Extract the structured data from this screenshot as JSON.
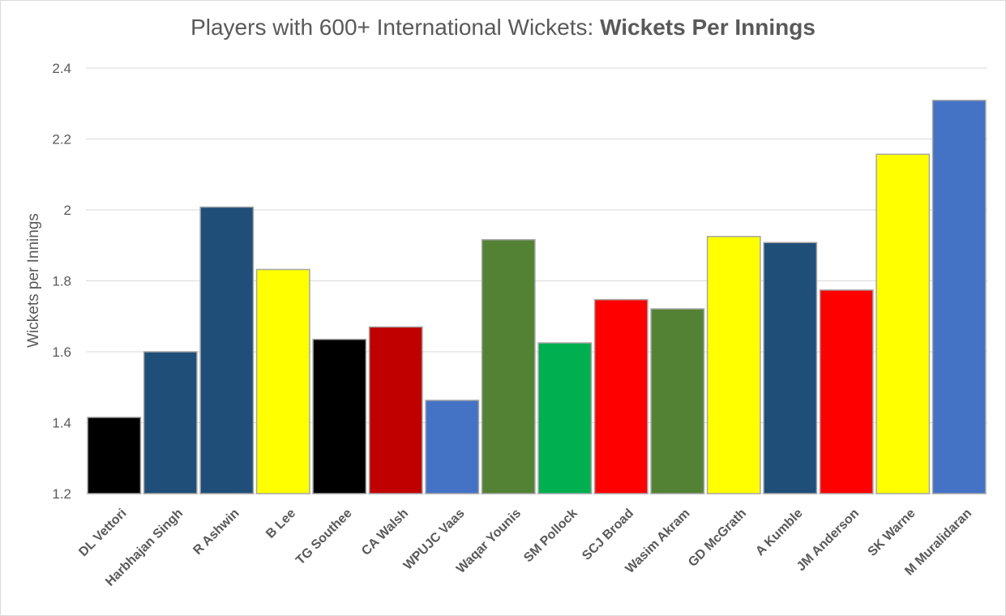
{
  "chart_data": {
    "type": "bar",
    "title": "Players with 600+ International Wickets:",
    "title_bold": "Wickets Per Innings",
    "xlabel": "",
    "ylabel": "Wickets per Innings",
    "ylim": [
      1.2,
      2.4
    ],
    "yticks": [
      1.2,
      1.4,
      1.6,
      1.8,
      2,
      2.2,
      2.4
    ],
    "grid": true,
    "categories": [
      "DL Vettori",
      "Harbhajan Singh",
      "R Ashwin",
      "B Lee",
      "TG Southee",
      "CA Walsh",
      "WPUJC Vaas",
      "Waqar Younis",
      "SM Pollock",
      "SCJ Broad",
      "Wasim Akram",
      "GD McGrath",
      "A Kumble",
      "JM Anderson",
      "SK Warne",
      "M Muralidaran"
    ],
    "values": [
      1.415,
      1.6,
      2.008,
      1.832,
      1.635,
      1.67,
      1.463,
      1.916,
      1.625,
      1.747,
      1.721,
      1.925,
      1.908,
      1.774,
      2.157,
      2.309
    ],
    "bar_colors": [
      "#000000",
      "#1f4e79",
      "#1f4e79",
      "#ffff00",
      "#000000",
      "#c00000",
      "#4472c4",
      "#548235",
      "#00b050",
      "#ff0000",
      "#548235",
      "#ffff00",
      "#1f4e79",
      "#ff0000",
      "#ffff00",
      "#4472c4"
    ]
  }
}
